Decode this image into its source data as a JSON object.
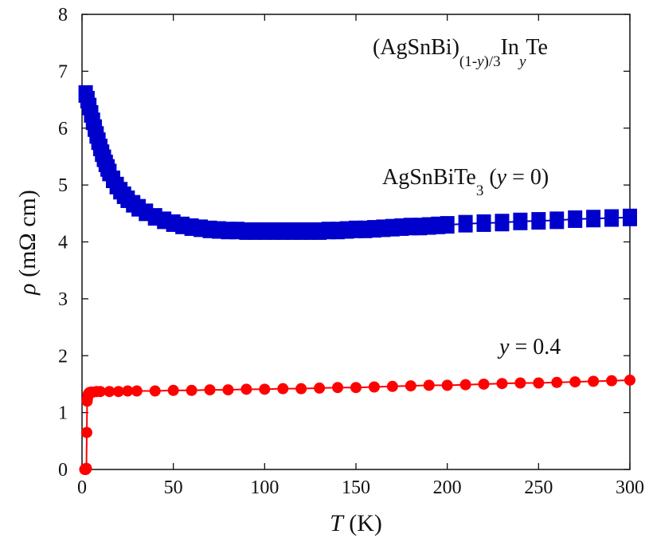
{
  "chart_data": {
    "type": "scatter",
    "xlabel": {
      "symbol": "T",
      "unit": " (K)"
    },
    "ylabel": {
      "symbol": "ρ",
      "unit": " (mΩ cm)"
    },
    "xlim": [
      0,
      300
    ],
    "ylim": [
      0,
      8
    ],
    "xticks": [
      0,
      50,
      100,
      150,
      200,
      250,
      300
    ],
    "yticks": [
      0,
      1,
      2,
      3,
      4,
      5,
      6,
      7,
      8
    ],
    "grid": false,
    "colors": {
      "series0": "#0000cc",
      "series1": "#ff0000",
      "axes": "#111111"
    },
    "annotations": {
      "formula": {
        "a": "(AgSnBi)",
        "b": "(1-",
        "c": "y",
        "d": ")/3",
        "e": "In",
        "f": "y",
        "g": "Te"
      },
      "series0_label": {
        "a": "AgSnBiTe",
        "b": "3",
        "c": " (",
        "d": "y",
        "e": " = 0)"
      },
      "series1_label": {
        "a": "y",
        "b": " = 0.4"
      }
    },
    "series": [
      {
        "marker": "square",
        "x": [
          2,
          3,
          4,
          5,
          6,
          7,
          8,
          9,
          10,
          11,
          12,
          13,
          14,
          15,
          17,
          19,
          21,
          23,
          25,
          28,
          31,
          35,
          40,
          45,
          50,
          55,
          60,
          65,
          70,
          75,
          80,
          85,
          90,
          95,
          100,
          105,
          110,
          115,
          120,
          125,
          130,
          135,
          140,
          145,
          150,
          155,
          160,
          165,
          170,
          175,
          180,
          185,
          190,
          195,
          200,
          210,
          220,
          230,
          240,
          250,
          260,
          270,
          280,
          290,
          300
        ],
        "y": [
          6.6,
          6.5,
          6.38,
          6.25,
          6.12,
          6.0,
          5.88,
          5.77,
          5.66,
          5.56,
          5.47,
          5.38,
          5.3,
          5.22,
          5.1,
          4.99,
          4.9,
          4.82,
          4.75,
          4.67,
          4.6,
          4.52,
          4.44,
          4.38,
          4.33,
          4.29,
          4.26,
          4.24,
          4.22,
          4.21,
          4.2,
          4.2,
          4.19,
          4.19,
          4.19,
          4.19,
          4.19,
          4.19,
          4.19,
          4.19,
          4.19,
          4.2,
          4.2,
          4.21,
          4.22,
          4.22,
          4.23,
          4.24,
          4.25,
          4.26,
          4.27,
          4.27,
          4.28,
          4.29,
          4.3,
          4.32,
          4.33,
          4.34,
          4.36,
          4.37,
          4.38,
          4.4,
          4.41,
          4.42,
          4.43
        ]
      },
      {
        "marker": "circle",
        "x": [
          1.5,
          2,
          2.2,
          2.4,
          2.6,
          2.8,
          3,
          3.2,
          3.5,
          4,
          5,
          6,
          8,
          10,
          15,
          20,
          25,
          30,
          40,
          50,
          60,
          70,
          80,
          90,
          100,
          110,
          120,
          130,
          140,
          150,
          160,
          170,
          180,
          190,
          200,
          210,
          220,
          230,
          240,
          250,
          260,
          270,
          280,
          290,
          300
        ],
        "y": [
          0.0,
          0.0,
          0.01,
          0.02,
          0.65,
          1.2,
          1.25,
          1.3,
          1.33,
          1.35,
          1.36,
          1.36,
          1.37,
          1.37,
          1.37,
          1.37,
          1.38,
          1.38,
          1.38,
          1.39,
          1.39,
          1.4,
          1.4,
          1.41,
          1.41,
          1.42,
          1.42,
          1.43,
          1.44,
          1.44,
          1.45,
          1.46,
          1.47,
          1.48,
          1.48,
          1.49,
          1.5,
          1.51,
          1.52,
          1.52,
          1.53,
          1.54,
          1.55,
          1.56,
          1.57
        ]
      }
    ]
  }
}
